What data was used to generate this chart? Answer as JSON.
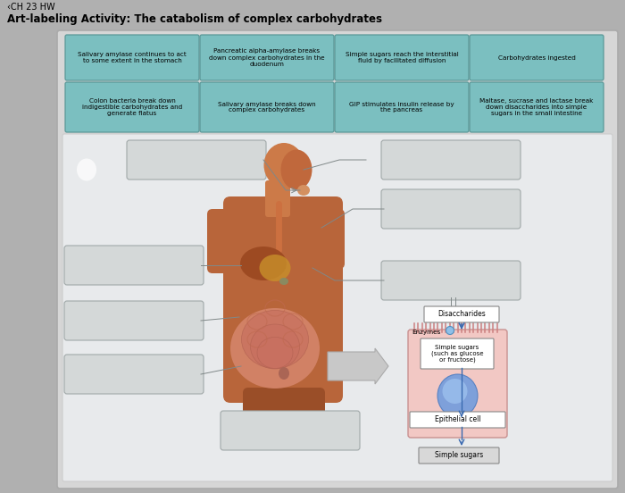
{
  "title": "Art-labeling Activity: The catabolism of complex carbohydrates",
  "header": "‹CH 23 HW",
  "outer_bg": "#b0b0b0",
  "panel_bg": "#d8d8d8",
  "inner_bg": "#e8eaea",
  "teal_box_color": "#7bbfc0",
  "teal_edge_color": "#5a9898",
  "answer_box_color": "#d4d8d8",
  "answer_edge_color": "#a0a8a8",
  "top_boxes_row1": [
    "Salivary amylase continues to act\nto some extent in the stomach",
    "Pancreatic alpha-amylase breaks\ndown complex carbohydrates in the\nduodenum",
    "Simple sugars reach the interstitial\nfluid by facilitated diffusion",
    "Carbohydrates ingested"
  ],
  "top_boxes_row2": [
    "Colon bacteria break down\nindigestible carbohydrates and\ngenerate flatus",
    "Salivary amylase breaks down\ncomplex carbohydrates",
    "GIP stimulates insulin release by\nthe pancreas",
    "Maltase, sucrase and lactase break\ndown disaccharides into simple\nsugars in the small intestine"
  ],
  "cell_labels": {
    "disaccharides": "Disaccharides",
    "enzymes": "Enzymes",
    "simple_sugars_cell": "Simple sugars\n(such as glucose\nor fructose)",
    "epithelial_cell": "Epithelial cell",
    "simple_sugars_bottom": "Simple sugars"
  }
}
